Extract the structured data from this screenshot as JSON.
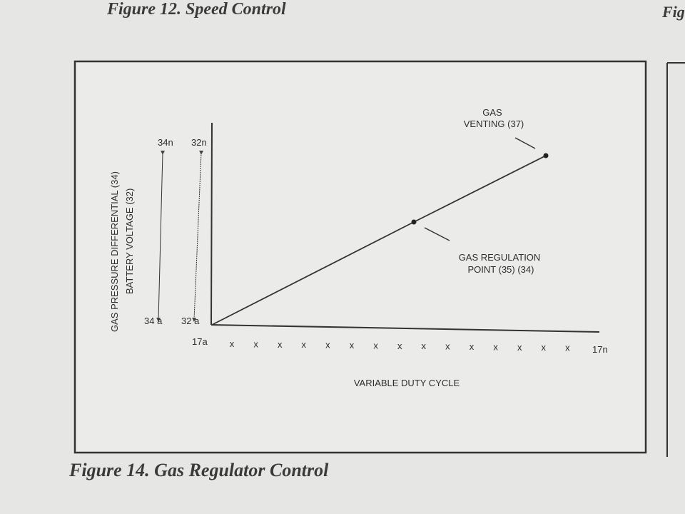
{
  "header": {
    "title": "Figure 12. Speed Control",
    "next_title_fragment": "Fig"
  },
  "figure": {
    "y_axis_labels": [
      "GAS PRESSURE DIFFERENTIAL (34)",
      "BATTERY VOLTAGE (32)"
    ],
    "arrow_top_labels": [
      "34n",
      "32n"
    ],
    "arrow_bottom_labels": [
      "34 a",
      "32 a"
    ],
    "x_start_label": "17a",
    "x_marks": [
      "x",
      "x",
      "x",
      "x",
      "x",
      "x",
      "x",
      "x",
      "x",
      "x",
      "x",
      "x",
      "x",
      "x",
      "x"
    ],
    "x_end_label": "17n",
    "x_axis_label": "VARIABLE DUTY CYCLE",
    "annotations": {
      "venting": [
        "GAS",
        "VENTING (37)"
      ],
      "regulation": [
        "GAS REGULATION",
        "POINT (35) (34)"
      ]
    }
  },
  "caption": "Figure 14. Gas Regulator Control"
}
